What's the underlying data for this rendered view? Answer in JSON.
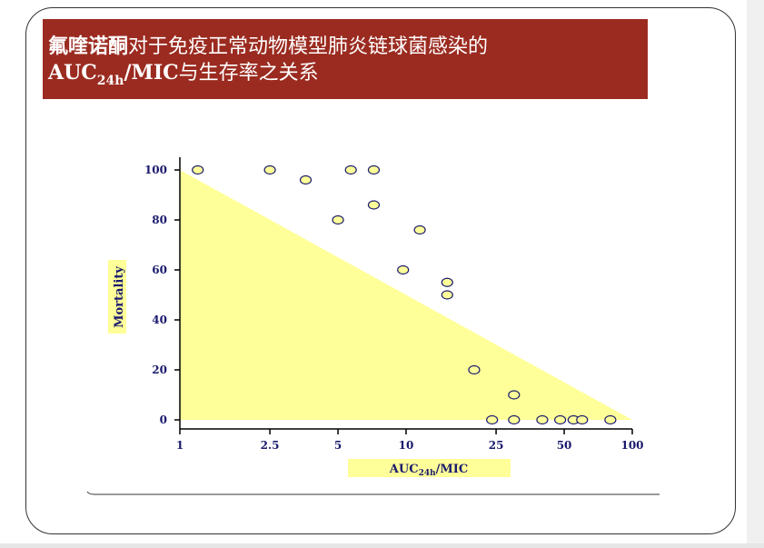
{
  "title": {
    "line1_bold": "氟喹诺酮",
    "line1_rest": "对于免疫正常动物模型肺炎链球菌感染的",
    "line2_auc": "AUC",
    "line2_sub": "24h",
    "line2_mic": "/MIC",
    "line2_rest": "与生存率之关系"
  },
  "colors": {
    "banner": "#9b2b20",
    "fill": "#ffff99",
    "marker_fill": "#ffff99",
    "axis_text": "#1a1a6e"
  },
  "chart_data": {
    "type": "scatter",
    "ylabel": "Mortality",
    "xlabel_main": "AUC",
    "xlabel_sub": "24h",
    "xlabel_tail": "/MIC",
    "xscale": "log",
    "xlim": [
      1,
      100
    ],
    "ylim": [
      0,
      100
    ],
    "x_ticks": [
      1,
      2.5,
      5,
      10,
      25,
      50,
      100
    ],
    "x_tick_labels": [
      "1",
      "2.5",
      "5",
      "10",
      "25",
      "50",
      "100"
    ],
    "y_ticks": [
      0,
      20,
      40,
      60,
      80,
      100
    ],
    "y_tick_labels": [
      "0",
      "20",
      "40",
      "60",
      "80",
      "100"
    ],
    "shaded_region": [
      [
        1,
        0
      ],
      [
        1,
        100
      ],
      [
        100,
        0
      ]
    ],
    "points": [
      {
        "x": 1.2,
        "y": 100
      },
      {
        "x": 2.5,
        "y": 100
      },
      {
        "x": 3.6,
        "y": 96
      },
      {
        "x": 5.0,
        "y": 80
      },
      {
        "x": 5.7,
        "y": 100
      },
      {
        "x": 7.2,
        "y": 100
      },
      {
        "x": 7.2,
        "y": 86
      },
      {
        "x": 9.7,
        "y": 60
      },
      {
        "x": 11.5,
        "y": 76
      },
      {
        "x": 15.2,
        "y": 55
      },
      {
        "x": 15.2,
        "y": 50
      },
      {
        "x": 20,
        "y": 20
      },
      {
        "x": 24,
        "y": 0
      },
      {
        "x": 30,
        "y": 10
      },
      {
        "x": 30,
        "y": 0
      },
      {
        "x": 40,
        "y": 0
      },
      {
        "x": 48,
        "y": 0
      },
      {
        "x": 55,
        "y": 0
      },
      {
        "x": 60,
        "y": 0
      },
      {
        "x": 80,
        "y": 0
      }
    ]
  }
}
